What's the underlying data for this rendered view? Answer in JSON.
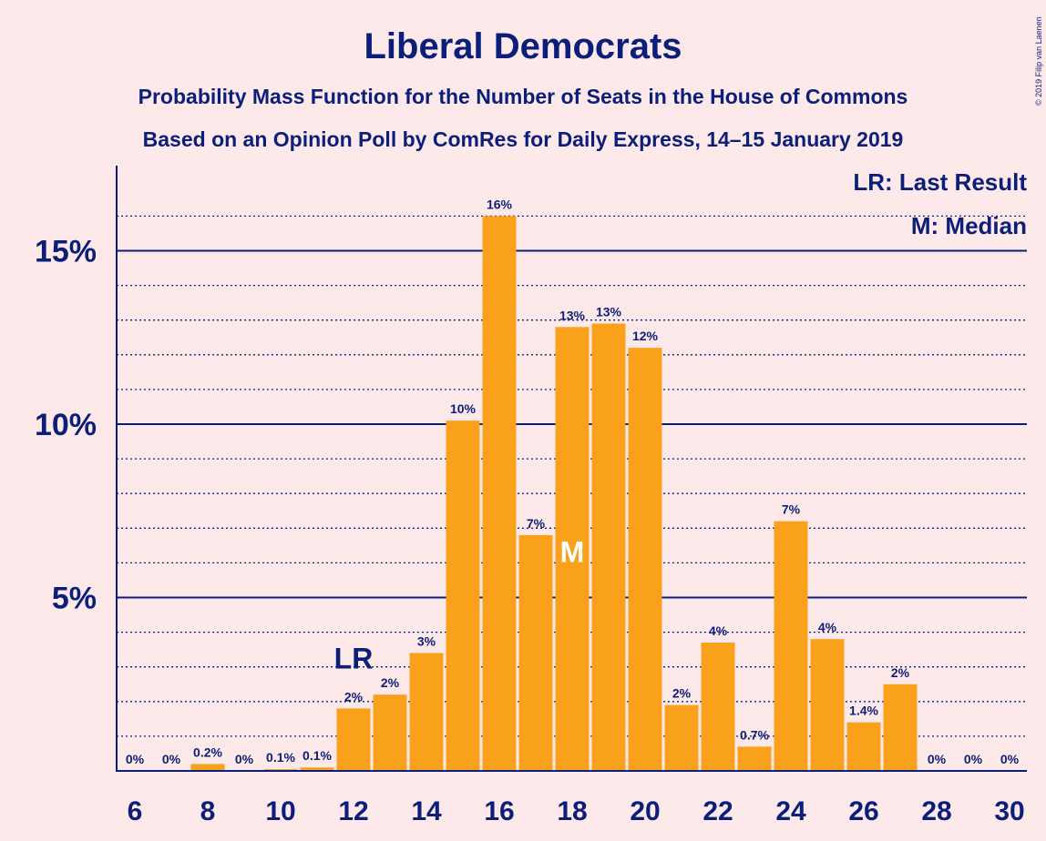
{
  "chart_data": {
    "type": "bar",
    "title": "Liberal Democrats",
    "subtitle1": "Probability Mass Function for the Number of Seats in the House of Commons",
    "subtitle2": "Based on an Opinion Poll by ComRes for Daily Express, 14–15 January 2019",
    "copyright": "© 2019 Filip van Laenen",
    "legend": {
      "lr": "LR: Last Result",
      "m": "M: Median"
    },
    "x": [
      6,
      7,
      8,
      9,
      10,
      11,
      12,
      13,
      14,
      15,
      16,
      17,
      18,
      19,
      20,
      21,
      22,
      23,
      24,
      25,
      26,
      27,
      28,
      29,
      30
    ],
    "values": [
      0,
      0,
      0.2,
      0,
      0.05,
      0.1,
      1.8,
      2.2,
      3.4,
      10.1,
      16.0,
      6.8,
      12.8,
      12.9,
      12.2,
      1.9,
      3.7,
      0.7,
      7.2,
      3.8,
      1.4,
      2.5,
      0,
      0,
      0
    ],
    "labels": [
      "0%",
      "0%",
      "0.2%",
      "0%",
      "0.1%",
      "0.1%",
      "2%",
      "2%",
      "3%",
      "10%",
      "16%",
      "7%",
      "13%",
      "13%",
      "12%",
      "2%",
      "4%",
      "0.7%",
      "7%",
      "4%",
      "1.4%",
      "2%",
      "0%",
      "0%",
      "0%"
    ],
    "xticks": [
      6,
      8,
      10,
      12,
      14,
      16,
      18,
      20,
      22,
      24,
      26,
      28,
      30
    ],
    "yticks": [
      {
        "value": 5,
        "label": "5%"
      },
      {
        "value": 10,
        "label": "10%"
      },
      {
        "value": 15,
        "label": "15%"
      }
    ],
    "yminor": [
      1,
      2,
      3,
      4,
      6,
      7,
      8,
      9,
      11,
      12,
      13,
      14,
      16
    ],
    "ylim": [
      0,
      17.5
    ],
    "last_result": {
      "x": 12,
      "label": "LR"
    },
    "median": {
      "x": 18,
      "label": "M"
    },
    "bar_color": "#f9a11b",
    "axis_color": "#0b1f7a",
    "background": "#fde8ea"
  }
}
